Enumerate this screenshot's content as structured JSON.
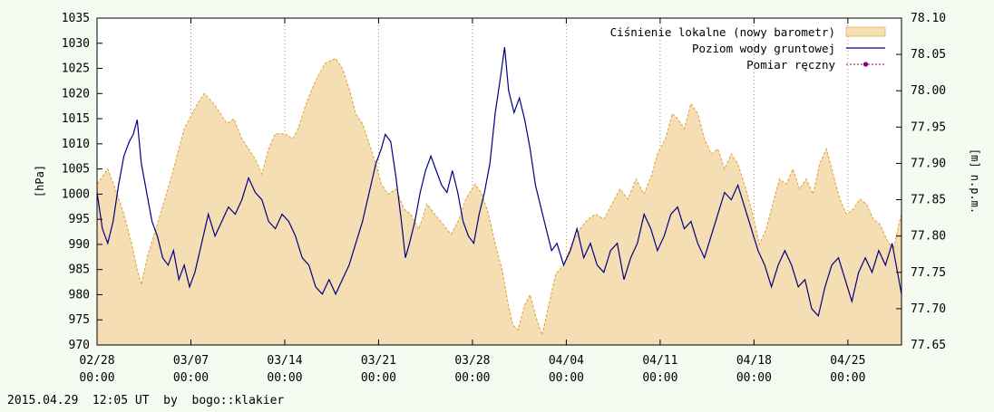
{
  "chart_data": {
    "type": "area",
    "x_ticks": [
      {
        "label": "02/28\n00:00",
        "day": 0
      },
      {
        "label": "03/07\n00:00",
        "day": 7
      },
      {
        "label": "03/14\n00:00",
        "day": 14
      },
      {
        "label": "03/21\n00:00",
        "day": 21
      },
      {
        "label": "03/28\n00:00",
        "day": 28
      },
      {
        "label": "04/04\n00:00",
        "day": 35
      },
      {
        "label": "04/11\n00:00",
        "day": 42
      },
      {
        "label": "04/18\n00:00",
        "day": 49
      },
      {
        "label": "04/25\n00:00",
        "day": 56
      }
    ],
    "x_range": [
      0,
      60
    ],
    "y_left": {
      "label": "[hPa]",
      "range": [
        970,
        1035
      ],
      "ticks": [
        970,
        975,
        980,
        985,
        990,
        995,
        1000,
        1005,
        1010,
        1015,
        1020,
        1025,
        1030,
        1035
      ]
    },
    "y_right": {
      "label": "[m] n.p.m.",
      "range": [
        77.65,
        78.1
      ],
      "ticks": [
        "77.65",
        "77.70",
        "77.75",
        "77.80",
        "77.85",
        "77.90",
        "77.95",
        "78.00",
        "78.05",
        "78.10"
      ]
    },
    "grid": "vertical-dotted",
    "legend_position": "top-right",
    "series": [
      {
        "name": "Ciśnienie lokalne (nowy barometr)",
        "axis": "left",
        "style": "filled-area",
        "color": "#f5deb3",
        "line_color": "#e0a030",
        "points": [
          [
            0,
            1002
          ],
          [
            0.8,
            1005
          ],
          [
            1.5,
            1000
          ],
          [
            2,
            996
          ],
          [
            2.6,
            990
          ],
          [
            3,
            985
          ],
          [
            3.3,
            982
          ],
          [
            3.8,
            988
          ],
          [
            4.5,
            994
          ],
          [
            5.5,
            1003
          ],
          [
            6.5,
            1013
          ],
          [
            7.5,
            1018
          ],
          [
            8,
            1020
          ],
          [
            8.7,
            1018
          ],
          [
            9.2,
            1016
          ],
          [
            9.7,
            1014
          ],
          [
            10.2,
            1015
          ],
          [
            10.8,
            1011
          ],
          [
            11.3,
            1009
          ],
          [
            11.8,
            1007
          ],
          [
            12.3,
            1004
          ],
          [
            12.8,
            1009
          ],
          [
            13.3,
            1012
          ],
          [
            14,
            1012
          ],
          [
            14.6,
            1011
          ],
          [
            15,
            1013
          ],
          [
            15.6,
            1018
          ],
          [
            16.2,
            1022
          ],
          [
            17,
            1026
          ],
          [
            17.8,
            1027
          ],
          [
            18.3,
            1025
          ],
          [
            18.8,
            1021
          ],
          [
            19.3,
            1016
          ],
          [
            19.8,
            1014
          ],
          [
            20.3,
            1010
          ],
          [
            20.8,
            1006
          ],
          [
            21.2,
            1002
          ],
          [
            21.7,
            1000
          ],
          [
            22.3,
            1001
          ],
          [
            22.9,
            997
          ],
          [
            23.4,
            996
          ],
          [
            24,
            993
          ],
          [
            24.6,
            998
          ],
          [
            25.2,
            996
          ],
          [
            25.8,
            994
          ],
          [
            26.4,
            992
          ],
          [
            27,
            995
          ],
          [
            27.5,
            999
          ],
          [
            28.2,
            1002
          ],
          [
            28.7,
            1000
          ],
          [
            29.2,
            996
          ],
          [
            29.7,
            990
          ],
          [
            30.2,
            985
          ],
          [
            30.6,
            979
          ],
          [
            31,
            974
          ],
          [
            31.4,
            973
          ],
          [
            31.9,
            978
          ],
          [
            32.3,
            980
          ],
          [
            32.8,
            975
          ],
          [
            33.2,
            972
          ],
          [
            33.7,
            978
          ],
          [
            34.2,
            984
          ],
          [
            34.8,
            986
          ],
          [
            35.4,
            990
          ],
          [
            36,
            993
          ],
          [
            36.6,
            995
          ],
          [
            37.2,
            996
          ],
          [
            37.8,
            995
          ],
          [
            38.4,
            998
          ],
          [
            39,
            1001
          ],
          [
            39.6,
            999
          ],
          [
            40.2,
            1003
          ],
          [
            40.8,
            1000
          ],
          [
            41.4,
            1004
          ],
          [
            41.8,
            1008
          ],
          [
            42.4,
            1011
          ],
          [
            42.9,
            1016
          ],
          [
            43.3,
            1015
          ],
          [
            43.8,
            1013
          ],
          [
            44.3,
            1018
          ],
          [
            44.8,
            1016
          ],
          [
            45.3,
            1011
          ],
          [
            45.8,
            1008
          ],
          [
            46.3,
            1009
          ],
          [
            46.8,
            1005
          ],
          [
            47.3,
            1008
          ],
          [
            47.8,
            1006
          ],
          [
            48.4,
            1001
          ],
          [
            48.9,
            996
          ],
          [
            49.4,
            990
          ],
          [
            49.9,
            993
          ],
          [
            50.4,
            998
          ],
          [
            50.9,
            1003
          ],
          [
            51.4,
            1002
          ],
          [
            51.9,
            1005
          ],
          [
            52.4,
            1001
          ],
          [
            52.9,
            1003
          ],
          [
            53.4,
            1000
          ],
          [
            53.9,
            1006
          ],
          [
            54.4,
            1009
          ],
          [
            54.9,
            1004
          ],
          [
            55.4,
            999
          ],
          [
            55.9,
            996
          ],
          [
            56.4,
            997
          ],
          [
            56.9,
            999
          ],
          [
            57.4,
            998
          ],
          [
            57.9,
            995
          ],
          [
            58.4,
            994
          ],
          [
            58.9,
            991
          ],
          [
            59.4,
            989
          ],
          [
            59.8,
            994
          ],
          [
            60,
            996
          ]
        ]
      },
      {
        "name": "Poziom wody gruntowej",
        "axis": "right",
        "style": "line",
        "color": "#000080",
        "points": [
          [
            0,
            77.86
          ],
          [
            0.4,
            77.81
          ],
          [
            0.8,
            77.79
          ],
          [
            1.2,
            77.82
          ],
          [
            1.6,
            77.87
          ],
          [
            2,
            77.91
          ],
          [
            2.4,
            77.93
          ],
          [
            2.7,
            77.94
          ],
          [
            3,
            77.96
          ],
          [
            3.3,
            77.9
          ],
          [
            3.7,
            77.86
          ],
          [
            4.1,
            77.82
          ],
          [
            4.5,
            77.8
          ],
          [
            4.9,
            77.77
          ],
          [
            5.3,
            77.76
          ],
          [
            5.7,
            77.78
          ],
          [
            6.1,
            77.74
          ],
          [
            6.5,
            77.76
          ],
          [
            6.9,
            77.73
          ],
          [
            7.3,
            77.75
          ],
          [
            7.8,
            77.79
          ],
          [
            8.3,
            77.83
          ],
          [
            8.8,
            77.8
          ],
          [
            9.3,
            77.82
          ],
          [
            9.8,
            77.84
          ],
          [
            10.3,
            77.83
          ],
          [
            10.8,
            77.85
          ],
          [
            11.3,
            77.88
          ],
          [
            11.8,
            77.86
          ],
          [
            12.3,
            77.85
          ],
          [
            12.8,
            77.82
          ],
          [
            13.3,
            77.81
          ],
          [
            13.8,
            77.83
          ],
          [
            14.3,
            77.82
          ],
          [
            14.8,
            77.8
          ],
          [
            15.3,
            77.77
          ],
          [
            15.8,
            77.76
          ],
          [
            16.3,
            77.73
          ],
          [
            16.8,
            77.72
          ],
          [
            17.3,
            77.74
          ],
          [
            17.8,
            77.72
          ],
          [
            18.3,
            77.74
          ],
          [
            18.8,
            77.76
          ],
          [
            19.3,
            77.79
          ],
          [
            19.8,
            77.82
          ],
          [
            20.3,
            77.86
          ],
          [
            20.8,
            77.9
          ],
          [
            21.2,
            77.92
          ],
          [
            21.5,
            77.94
          ],
          [
            21.9,
            77.93
          ],
          [
            22.3,
            77.88
          ],
          [
            22.7,
            77.82
          ],
          [
            23,
            77.77
          ],
          [
            23.3,
            77.79
          ],
          [
            23.7,
            77.82
          ],
          [
            24.1,
            77.86
          ],
          [
            24.5,
            77.89
          ],
          [
            24.9,
            77.91
          ],
          [
            25.3,
            77.89
          ],
          [
            25.7,
            77.87
          ],
          [
            26.1,
            77.86
          ],
          [
            26.5,
            77.89
          ],
          [
            26.9,
            77.86
          ],
          [
            27.3,
            77.82
          ],
          [
            27.7,
            77.8
          ],
          [
            28.1,
            77.79
          ],
          [
            28.5,
            77.83
          ],
          [
            28.9,
            77.86
          ],
          [
            29.3,
            77.9
          ],
          [
            29.7,
            77.97
          ],
          [
            30.1,
            78.02
          ],
          [
            30.4,
            78.06
          ],
          [
            30.7,
            78.0
          ],
          [
            31.1,
            77.97
          ],
          [
            31.5,
            77.99
          ],
          [
            31.9,
            77.96
          ],
          [
            32.3,
            77.92
          ],
          [
            32.7,
            77.87
          ],
          [
            33.1,
            77.84
          ],
          [
            33.5,
            77.81
          ],
          [
            33.9,
            77.78
          ],
          [
            34.3,
            77.79
          ],
          [
            34.8,
            77.76
          ],
          [
            35.3,
            77.78
          ],
          [
            35.8,
            77.81
          ],
          [
            36.3,
            77.77
          ],
          [
            36.8,
            77.79
          ],
          [
            37.3,
            77.76
          ],
          [
            37.8,
            77.75
          ],
          [
            38.3,
            77.78
          ],
          [
            38.8,
            77.79
          ],
          [
            39.3,
            77.74
          ],
          [
            39.8,
            77.77
          ],
          [
            40.3,
            77.79
          ],
          [
            40.8,
            77.83
          ],
          [
            41.3,
            77.81
          ],
          [
            41.8,
            77.78
          ],
          [
            42.3,
            77.8
          ],
          [
            42.8,
            77.83
          ],
          [
            43.3,
            77.84
          ],
          [
            43.8,
            77.81
          ],
          [
            44.3,
            77.82
          ],
          [
            44.8,
            77.79
          ],
          [
            45.3,
            77.77
          ],
          [
            45.8,
            77.8
          ],
          [
            46.3,
            77.83
          ],
          [
            46.8,
            77.86
          ],
          [
            47.3,
            77.85
          ],
          [
            47.8,
            77.87
          ],
          [
            48.3,
            77.84
          ],
          [
            48.8,
            77.81
          ],
          [
            49.3,
            77.78
          ],
          [
            49.8,
            77.76
          ],
          [
            50.3,
            77.73
          ],
          [
            50.8,
            77.76
          ],
          [
            51.3,
            77.78
          ],
          [
            51.8,
            77.76
          ],
          [
            52.3,
            77.73
          ],
          [
            52.8,
            77.74
          ],
          [
            53.3,
            77.7
          ],
          [
            53.8,
            77.69
          ],
          [
            54.3,
            77.73
          ],
          [
            54.8,
            77.76
          ],
          [
            55.3,
            77.77
          ],
          [
            55.8,
            77.74
          ],
          [
            56.3,
            77.71
          ],
          [
            56.8,
            77.75
          ],
          [
            57.3,
            77.77
          ],
          [
            57.8,
            77.75
          ],
          [
            58.3,
            77.78
          ],
          [
            58.8,
            77.76
          ],
          [
            59.3,
            77.79
          ],
          [
            59.7,
            77.75
          ],
          [
            60,
            77.72
          ]
        ]
      },
      {
        "name": "Pomiar ręczny",
        "axis": "right",
        "style": "points",
        "color": "#800080",
        "points": []
      }
    ]
  },
  "footer": "2015.04.29  12:05 UT  by  bogo::klakier"
}
